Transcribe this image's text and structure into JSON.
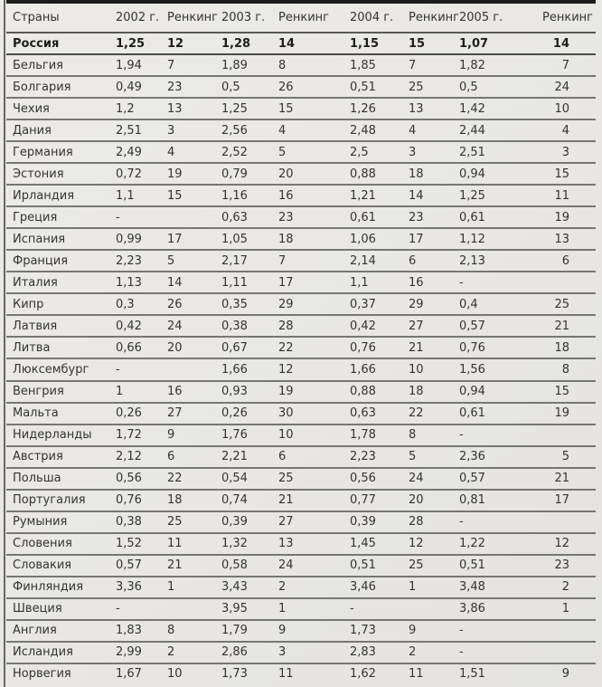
{
  "colors": {
    "background": "#e9e8e4",
    "top_bar": "#1c1c1c",
    "row_rule": "#767672",
    "header_rule": "#585858",
    "left_rule": "#4f4f4f",
    "text": "#333333",
    "bold_text": "#1d1d1d"
  },
  "table": {
    "columns": [
      "Страны",
      "2002 г.",
      "Ренкинг",
      "2003 г.",
      "Ренкинг",
      "2004 г.",
      "Ренкинг",
      "2005 г.",
      "Ренкинг"
    ],
    "rows": [
      {
        "country": "Россия",
        "bold": true,
        "values": [
          "1,25",
          "12",
          "1,28",
          "14",
          "1,15",
          "15",
          "1,07",
          "14"
        ]
      },
      {
        "country": "Бельгия",
        "bold": false,
        "values": [
          "1,94",
          "7",
          "1,89",
          "8",
          "1,85",
          "7",
          "1,82",
          "7"
        ]
      },
      {
        "country": "Болгария",
        "bold": false,
        "values": [
          "0,49",
          "23",
          "0,5",
          "26",
          "0,51",
          "25",
          "0,5",
          "24"
        ]
      },
      {
        "country": "Чехия",
        "bold": false,
        "values": [
          "1,2",
          "13",
          "1,25",
          "15",
          "1,26",
          "13",
          "1,42",
          "10"
        ]
      },
      {
        "country": "Дания",
        "bold": false,
        "values": [
          "2,51",
          "3",
          "2,56",
          "4",
          "2,48",
          "4",
          "2,44",
          "4"
        ]
      },
      {
        "country": "Германия",
        "bold": false,
        "values": [
          "2,49",
          "4",
          "2,52",
          "5",
          "2,5",
          "3",
          "2,51",
          "3"
        ]
      },
      {
        "country": "Эстония",
        "bold": false,
        "values": [
          "0,72",
          "19",
          "0,79",
          "20",
          "0,88",
          "18",
          "0,94",
          "15"
        ]
      },
      {
        "country": "Ирландия",
        "bold": false,
        "values": [
          "1,1",
          "15",
          "1,16",
          "16",
          "1,21",
          "14",
          "1,25",
          "11"
        ]
      },
      {
        "country": "Греция",
        "bold": false,
        "values": [
          "-",
          "",
          "0,63",
          "23",
          "0,61",
          "23",
          "0,61",
          "19"
        ]
      },
      {
        "country": "Испания",
        "bold": false,
        "values": [
          "0,99",
          "17",
          "1,05",
          "18",
          "1,06",
          "17",
          "1,12",
          "13"
        ]
      },
      {
        "country": "Франция",
        "bold": false,
        "values": [
          "2,23",
          "5",
          "2,17",
          "7",
          "2,14",
          "6",
          "2,13",
          "6"
        ]
      },
      {
        "country": "Италия",
        "bold": false,
        "values": [
          "1,13",
          "14",
          "1,11",
          "17",
          "1,1",
          "16",
          "-",
          ""
        ]
      },
      {
        "country": "Кипр",
        "bold": false,
        "values": [
          "0,3",
          "26",
          "0,35",
          "29",
          "0,37",
          "29",
          "0,4",
          "25"
        ]
      },
      {
        "country": "Латвия",
        "bold": false,
        "values": [
          "0,42",
          "24",
          "0,38",
          "28",
          "0,42",
          "27",
          "0,57",
          "21"
        ]
      },
      {
        "country": "Литва",
        "bold": false,
        "values": [
          "0,66",
          "20",
          "0,67",
          "22",
          "0,76",
          "21",
          "0,76",
          "18"
        ]
      },
      {
        "country": "Люксембург",
        "bold": false,
        "values": [
          "-",
          "",
          "1,66",
          "12",
          "1,66",
          "10",
          "1,56",
          "8"
        ]
      },
      {
        "country": "Венгрия",
        "bold": false,
        "values": [
          "1",
          "16",
          "0,93",
          "19",
          "0,88",
          "18",
          "0,94",
          "15"
        ]
      },
      {
        "country": "Мальта",
        "bold": false,
        "values": [
          "0,26",
          "27",
          "0,26",
          "30",
          "0,63",
          "22",
          "0,61",
          "19"
        ]
      },
      {
        "country": "Нидерланды",
        "bold": false,
        "values": [
          "1,72",
          "9",
          "1,76",
          "10",
          "1,78",
          "8",
          "-",
          ""
        ]
      },
      {
        "country": "Австрия",
        "bold": false,
        "values": [
          "2,12",
          "6",
          "2,21",
          "6",
          "2,23",
          "5",
          "2,36",
          "5"
        ]
      },
      {
        "country": "Польша",
        "bold": false,
        "values": [
          "0,56",
          "22",
          "0,54",
          "25",
          "0,56",
          "24",
          "0,57",
          "21"
        ]
      },
      {
        "country": "Португалия",
        "bold": false,
        "values": [
          "0,76",
          "18",
          "0,74",
          "21",
          "0,77",
          "20",
          "0,81",
          "17"
        ]
      },
      {
        "country": "Румыния",
        "bold": false,
        "values": [
          "0,38",
          "25",
          "0,39",
          "27",
          "0,39",
          "28",
          "-",
          ""
        ]
      },
      {
        "country": "Словения",
        "bold": false,
        "values": [
          "1,52",
          "11",
          "1,32",
          "13",
          "1,45",
          "12",
          "1,22",
          "12"
        ]
      },
      {
        "country": "Словакия",
        "bold": false,
        "values": [
          "0,57",
          "21",
          "0,58",
          "24",
          "0,51",
          "25",
          "0,51",
          "23"
        ]
      },
      {
        "country": "Финляндия",
        "bold": false,
        "values": [
          "3,36",
          "1",
          "3,43",
          "2",
          "3,46",
          "1",
          "3,48",
          "2"
        ]
      },
      {
        "country": "Швеция",
        "bold": false,
        "values": [
          "-",
          "",
          "3,95",
          "1",
          "-",
          "",
          "3,86",
          "1"
        ]
      },
      {
        "country": "Англия",
        "bold": false,
        "values": [
          "1,83",
          "8",
          "1,79",
          "9",
          "1,73",
          "9",
          "-",
          ""
        ]
      },
      {
        "country": "Исландия",
        "bold": false,
        "values": [
          "2,99",
          "2",
          "2,86",
          "3",
          "2,83",
          "2",
          "-",
          ""
        ]
      },
      {
        "country": "Норвегия",
        "bold": false,
        "values": [
          "1,67",
          "10",
          "1,73",
          "11",
          "1,62",
          "11",
          "1,51",
          "9"
        ]
      }
    ]
  }
}
